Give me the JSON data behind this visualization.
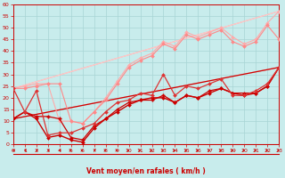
{
  "xlabel": "Vent moyen/en rafales ( km/h )",
  "bg_color": "#c8ecec",
  "grid_color": "#a8d4d4",
  "axis_color": "#cc0000",
  "xlim": [
    0,
    23
  ],
  "ylim": [
    0,
    60
  ],
  "yticks": [
    0,
    5,
    10,
    15,
    20,
    25,
    30,
    35,
    40,
    45,
    50,
    55,
    60
  ],
  "xticks": [
    0,
    1,
    2,
    3,
    4,
    5,
    6,
    7,
    8,
    9,
    10,
    11,
    12,
    13,
    14,
    15,
    16,
    17,
    18,
    19,
    20,
    21,
    22,
    23
  ],
  "series": [
    {
      "x": [
        0,
        23
      ],
      "y": [
        24,
        57
      ],
      "color": "#ffaaaa",
      "lw": 0.8,
      "marker": null,
      "ms": 0
    },
    {
      "x": [
        0,
        23
      ],
      "y": [
        11,
        33
      ],
      "color": "#ffaaaa",
      "lw": 0.8,
      "marker": null,
      "ms": 0
    },
    {
      "x": [
        0,
        1,
        2,
        3,
        4,
        5,
        6,
        7,
        8,
        9,
        10,
        11,
        12,
        13,
        14,
        15,
        16,
        17,
        18,
        19,
        20,
        21,
        22,
        23
      ],
      "y": [
        24,
        25,
        26,
        26,
        10,
        10,
        9,
        14,
        20,
        27,
        34,
        37,
        39,
        44,
        42,
        48,
        46,
        48,
        50,
        46,
        43,
        45,
        52,
        57
      ],
      "color": "#ffaaaa",
      "lw": 0.8,
      "marker": "D",
      "ms": 2.0
    },
    {
      "x": [
        0,
        1,
        2,
        3,
        4,
        5,
        6,
        7,
        8,
        9,
        10,
        11,
        12,
        13,
        14,
        15,
        16,
        17,
        18,
        19,
        20,
        21,
        22,
        23
      ],
      "y": [
        24,
        24,
        25,
        26,
        26,
        10,
        9,
        14,
        19,
        26,
        33,
        36,
        38,
        43,
        41,
        47,
        45,
        47,
        49,
        44,
        42,
        44,
        51,
        45
      ],
      "color": "#ff8888",
      "lw": 0.8,
      "marker": "D",
      "ms": 2.0
    },
    {
      "x": [
        0,
        1,
        2,
        3,
        4,
        5,
        6,
        7,
        8,
        9,
        10,
        11,
        12,
        13,
        14,
        15,
        16,
        17,
        18,
        19,
        20,
        21,
        22,
        23
      ],
      "y": [
        11,
        14,
        11,
        3,
        4,
        2,
        1,
        7,
        11,
        14,
        17,
        19,
        20,
        20,
        18,
        21,
        20,
        22,
        24,
        22,
        21,
        22,
        25,
        33
      ],
      "color": "#cc0000",
      "lw": 1.0,
      "marker": "D",
      "ms": 2.0
    },
    {
      "x": [
        0,
        1,
        2,
        3,
        4,
        5,
        6,
        7,
        8,
        9,
        10,
        11,
        12,
        13,
        14,
        15,
        16,
        17,
        18,
        19,
        20,
        21,
        22,
        23
      ],
      "y": [
        11,
        14,
        12,
        12,
        11,
        3,
        2,
        8,
        11,
        15,
        18,
        19,
        19,
        21,
        18,
        21,
        20,
        23,
        24,
        22,
        22,
        22,
        25,
        33
      ],
      "color": "#cc0000",
      "lw": 0.9,
      "marker": "P",
      "ms": 2.5
    },
    {
      "x": [
        0,
        23
      ],
      "y": [
        11,
        33
      ],
      "color": "#cc0000",
      "lw": 0.9,
      "marker": null,
      "ms": 0
    },
    {
      "x": [
        0,
        1,
        2,
        3,
        4,
        5,
        6,
        7,
        8,
        9,
        10,
        11,
        12,
        13,
        14,
        15,
        16,
        17,
        18,
        19,
        20,
        21,
        22,
        23
      ],
      "y": [
        24,
        14,
        23,
        4,
        5,
        5,
        7,
        9,
        14,
        18,
        19,
        22,
        21,
        30,
        21,
        25,
        24,
        26,
        28,
        21,
        21,
        23,
        26,
        33
      ],
      "color": "#dd3333",
      "lw": 0.9,
      "marker": "D",
      "ms": 2.0
    },
    {
      "x": [
        0,
        23
      ],
      "y": [
        24,
        57
      ],
      "color": "#ffcccc",
      "lw": 0.7,
      "marker": null,
      "ms": 0
    }
  ],
  "arrow_dirs": [
    -1,
    -1,
    -1,
    -1,
    -1,
    1,
    1,
    -1,
    1,
    1,
    1,
    1,
    1,
    1,
    1,
    1,
    1,
    1,
    1,
    1,
    1,
    1,
    1,
    1
  ]
}
